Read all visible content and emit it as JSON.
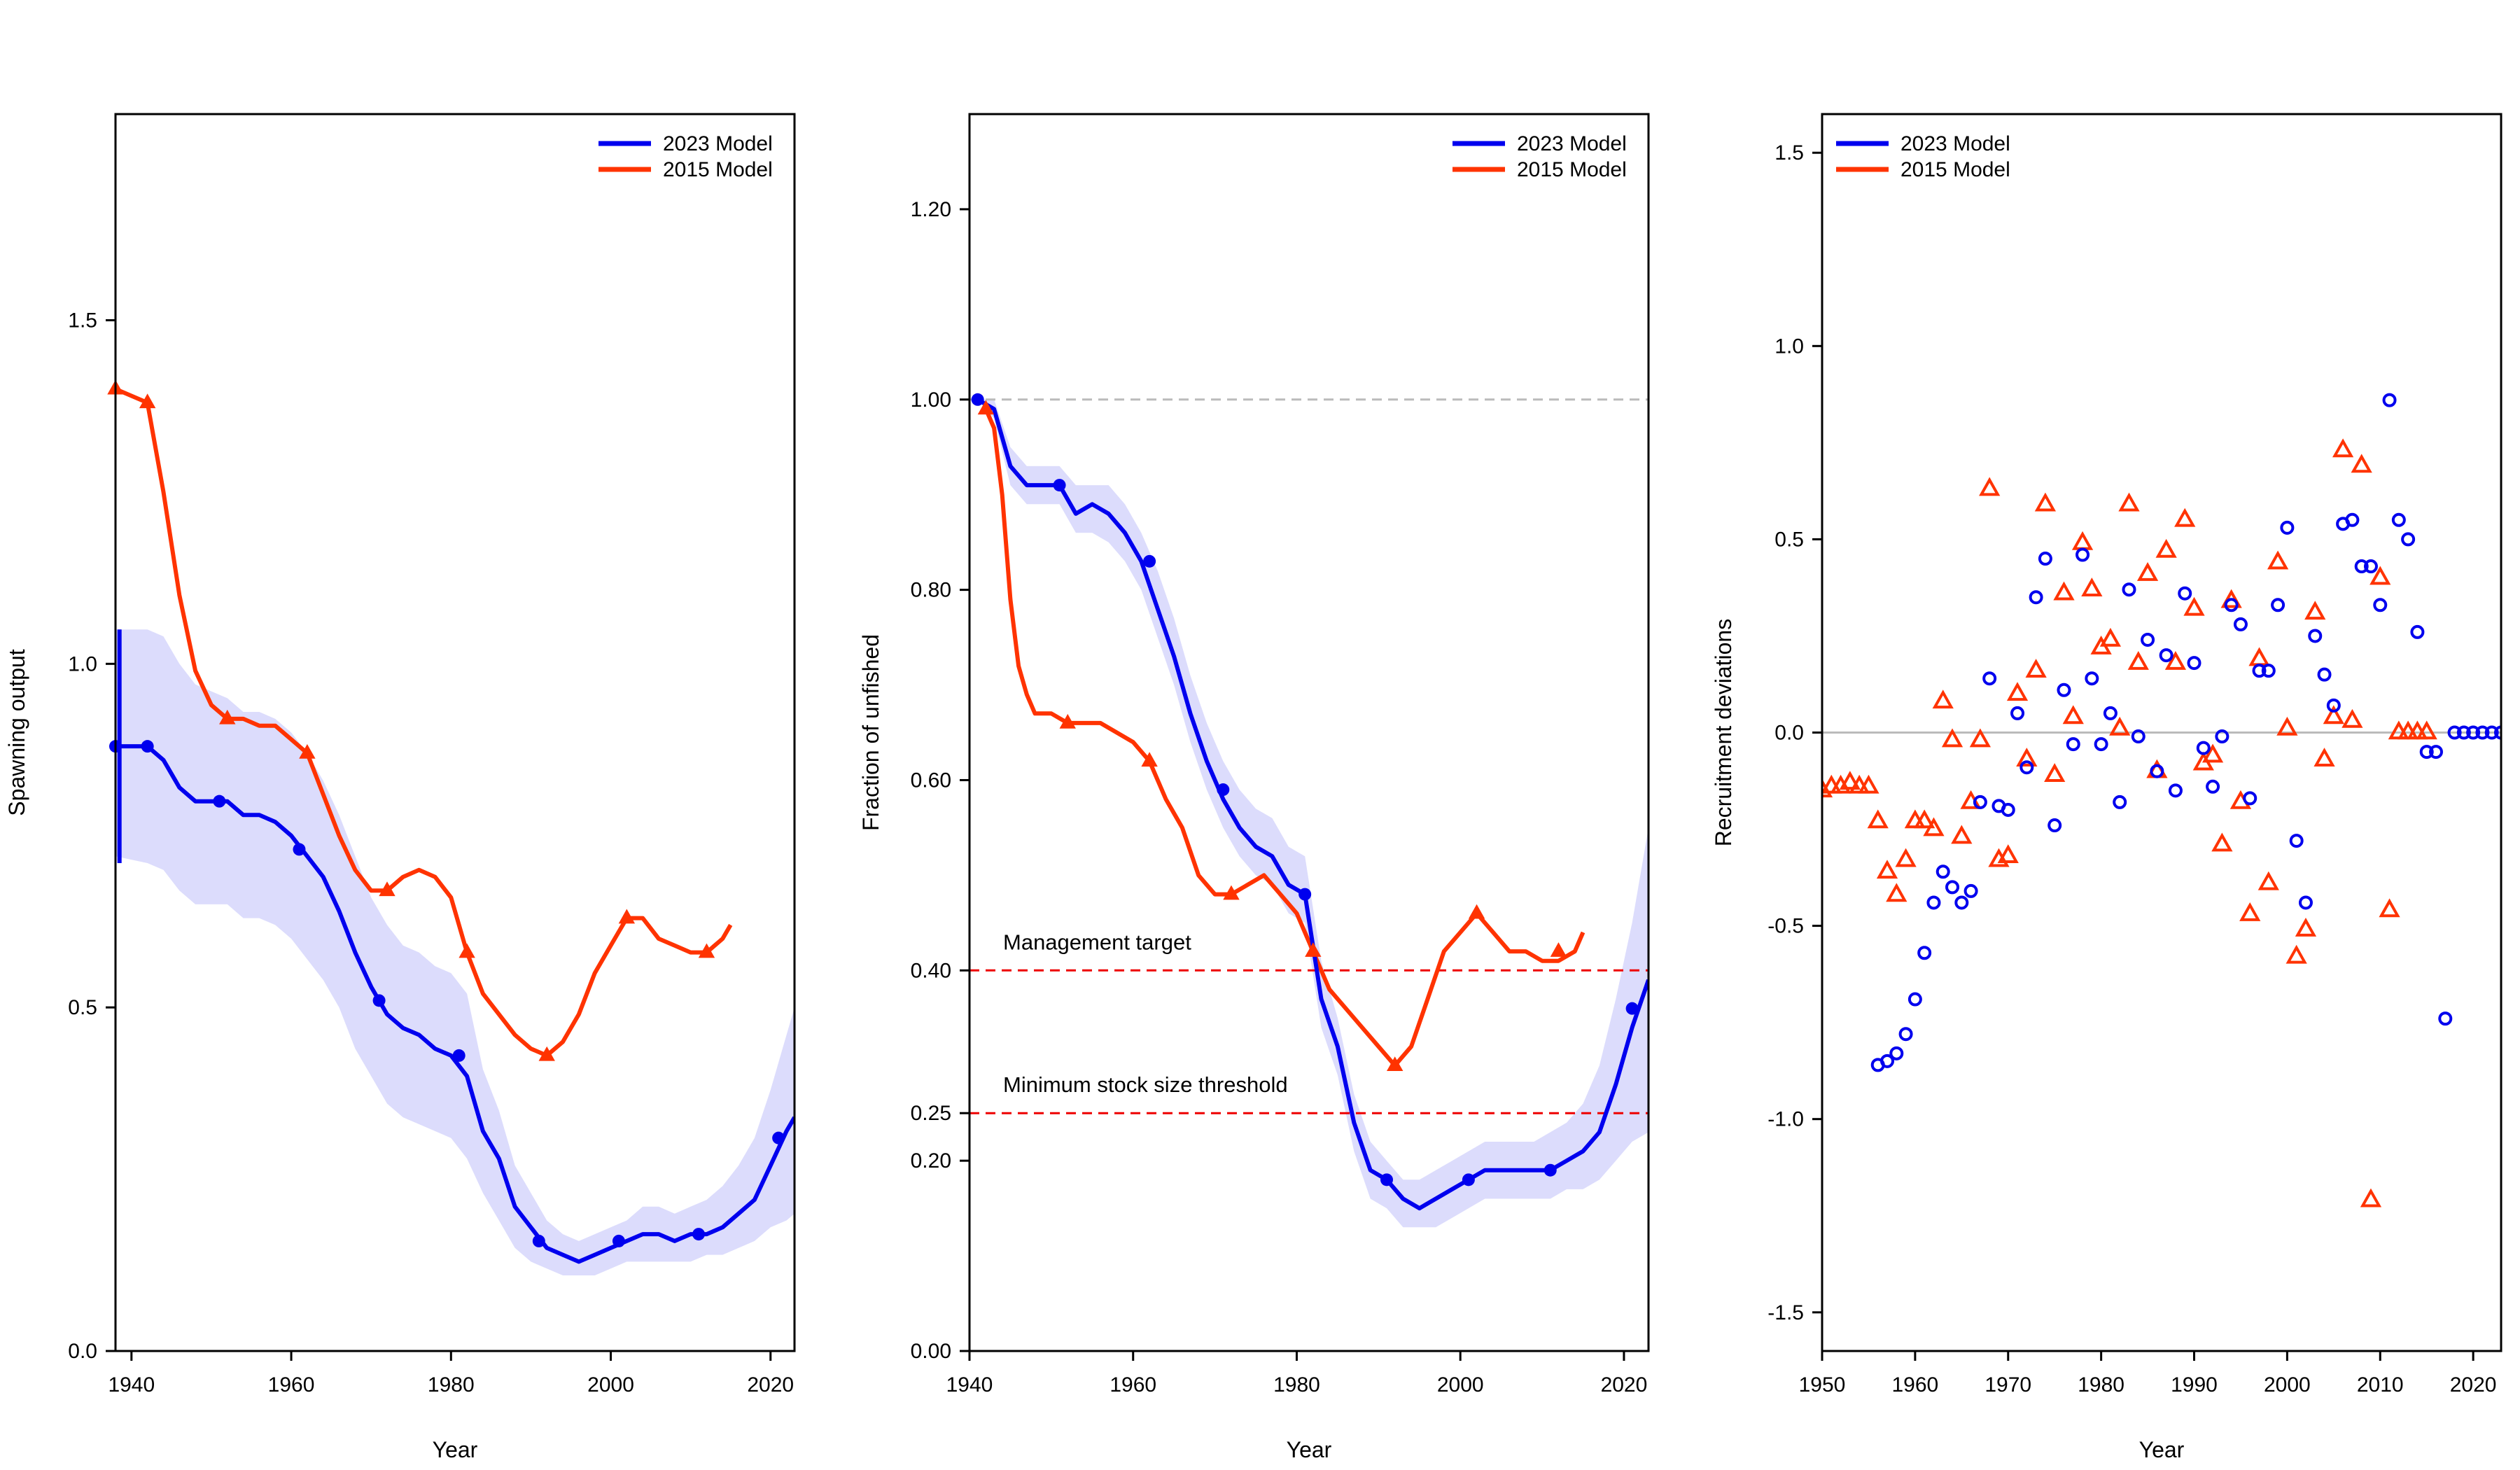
{
  "colors": {
    "model_2023": "#0000ee",
    "model_2015": "#ff3300",
    "band": "#dcdcfc",
    "reference_dashed": "#ee0000",
    "unfished_dashed": "#bbbbbb",
    "zero_line": "#bbbbbb"
  },
  "legend": {
    "items": [
      "2023 Model",
      "2015 Model"
    ]
  },
  "chart_data": [
    {
      "type": "line",
      "panel": "spawning-output",
      "xlabel": "Year",
      "ylabel": "Spawning output",
      "xlim": [
        1938,
        2023
      ],
      "ylim": [
        0,
        1.8
      ],
      "xticks": [
        "1940",
        "1960",
        "1980",
        "2000",
        "2020"
      ],
      "yticks": [
        "0.0",
        "0.5",
        "1.0",
        "1.5"
      ],
      "legend_position": "top-right",
      "initial_interval_2023": {
        "x": 1938.5,
        "low": 0.71,
        "high": 1.05
      },
      "series": [
        {
          "name": "2023 Model",
          "x": [
            1938,
            1942,
            1944,
            1946,
            1948,
            1950,
            1952,
            1954,
            1956,
            1958,
            1960,
            1962,
            1964,
            1966,
            1968,
            1970,
            1972,
            1974,
            1976,
            1978,
            1980,
            1982,
            1984,
            1986,
            1988,
            1990,
            1992,
            1994,
            1996,
            1998,
            2000,
            2002,
            2004,
            2006,
            2008,
            2010,
            2012,
            2014,
            2016,
            2018,
            2020,
            2022,
            2023
          ],
          "y": [
            0.88,
            0.88,
            0.86,
            0.82,
            0.8,
            0.8,
            0.8,
            0.78,
            0.78,
            0.77,
            0.75,
            0.72,
            0.69,
            0.64,
            0.58,
            0.53,
            0.49,
            0.47,
            0.46,
            0.44,
            0.43,
            0.4,
            0.32,
            0.28,
            0.21,
            0.18,
            0.15,
            0.14,
            0.13,
            0.14,
            0.15,
            0.16,
            0.17,
            0.17,
            0.16,
            0.17,
            0.17,
            0.18,
            0.2,
            0.22,
            0.27,
            0.32,
            0.34
          ],
          "lower": [
            0.72,
            0.71,
            0.7,
            0.67,
            0.65,
            0.65,
            0.65,
            0.63,
            0.63,
            0.62,
            0.6,
            0.57,
            0.54,
            0.5,
            0.44,
            0.4,
            0.36,
            0.34,
            0.33,
            0.32,
            0.31,
            0.28,
            0.23,
            0.19,
            0.15,
            0.13,
            0.12,
            0.11,
            0.11,
            0.11,
            0.12,
            0.13,
            0.13,
            0.13,
            0.13,
            0.13,
            0.14,
            0.14,
            0.15,
            0.16,
            0.18,
            0.19,
            0.2
          ],
          "upper": [
            1.05,
            1.05,
            1.04,
            1.0,
            0.97,
            0.96,
            0.95,
            0.93,
            0.93,
            0.92,
            0.9,
            0.87,
            0.83,
            0.78,
            0.72,
            0.66,
            0.62,
            0.59,
            0.58,
            0.56,
            0.55,
            0.52,
            0.41,
            0.35,
            0.27,
            0.23,
            0.19,
            0.17,
            0.16,
            0.17,
            0.18,
            0.19,
            0.21,
            0.21,
            0.2,
            0.21,
            0.22,
            0.24,
            0.27,
            0.31,
            0.38,
            0.46,
            0.5
          ],
          "markers": {
            "x": [
              1938,
              1942,
              1951,
              1961,
              1971,
              1981,
              1991,
              2001,
              2011,
              2021
            ],
            "y": [
              0.88,
              0.88,
              0.8,
              0.73,
              0.51,
              0.43,
              0.16,
              0.16,
              0.17,
              0.31
            ]
          }
        },
        {
          "name": "2015 Model",
          "x": [
            1938,
            1940,
            1942,
            1944,
            1946,
            1948,
            1950,
            1952,
            1954,
            1956,
            1958,
            1960,
            1962,
            1964,
            1966,
            1968,
            1970,
            1972,
            1974,
            1976,
            1978,
            1980,
            1982,
            1984,
            1986,
            1988,
            1990,
            1992,
            1994,
            1996,
            1998,
            2000,
            2002,
            2004,
            2006,
            2008,
            2010,
            2012,
            2014,
            2015
          ],
          "y": [
            1.4,
            1.39,
            1.38,
            1.25,
            1.1,
            0.99,
            0.94,
            0.92,
            0.92,
            0.91,
            0.91,
            0.89,
            0.87,
            0.81,
            0.75,
            0.7,
            0.67,
            0.67,
            0.69,
            0.7,
            0.69,
            0.66,
            0.58,
            0.52,
            0.49,
            0.46,
            0.44,
            0.43,
            0.45,
            0.49,
            0.55,
            0.59,
            0.63,
            0.63,
            0.6,
            0.59,
            0.58,
            0.58,
            0.6,
            0.62
          ],
          "markers": {
            "x": [
              1938,
              1942,
              1952,
              1962,
              1972,
              1982,
              1992,
              2002,
              2012
            ],
            "y": [
              1.4,
              1.38,
              0.92,
              0.87,
              0.67,
              0.58,
              0.43,
              0.63,
              0.58
            ]
          }
        }
      ]
    },
    {
      "type": "line",
      "panel": "fraction-unfished",
      "xlabel": "Year",
      "ylabel": "Fraction of unfished",
      "xlim": [
        1940,
        2023
      ],
      "ylim": [
        0,
        1.3
      ],
      "xticks": [
        "1940",
        "1960",
        "1980",
        "2000",
        "2020"
      ],
      "yticks": [
        "0.00",
        "0.20",
        "0.25",
        "0.40",
        "0.60",
        "0.80",
        "1.00",
        "1.20"
      ],
      "legend_position": "top-right",
      "reference_lines": [
        {
          "y": 1.0,
          "style": "dashed-grey",
          "label": ""
        },
        {
          "y": 0.4,
          "style": "dashed-red",
          "label": "Management target"
        },
        {
          "y": 0.25,
          "style": "dashed-red",
          "label": "Minimum stock size threshold"
        }
      ],
      "series": [
        {
          "name": "2023 Model",
          "x": [
            1941,
            1943,
            1945,
            1947,
            1949,
            1951,
            1953,
            1955,
            1957,
            1959,
            1961,
            1963,
            1965,
            1967,
            1969,
            1971,
            1973,
            1975,
            1977,
            1979,
            1981,
            1983,
            1985,
            1987,
            1989,
            1991,
            1993,
            1995,
            1997,
            1999,
            2001,
            2003,
            2005,
            2007,
            2009,
            2011,
            2013,
            2015,
            2017,
            2019,
            2021,
            2023
          ],
          "y": [
            1.0,
            0.99,
            0.93,
            0.91,
            0.91,
            0.91,
            0.88,
            0.89,
            0.88,
            0.86,
            0.83,
            0.78,
            0.73,
            0.67,
            0.62,
            0.58,
            0.55,
            0.53,
            0.52,
            0.49,
            0.48,
            0.37,
            0.32,
            0.24,
            0.19,
            0.18,
            0.16,
            0.15,
            0.16,
            0.17,
            0.18,
            0.19,
            0.19,
            0.19,
            0.19,
            0.19,
            0.2,
            0.21,
            0.23,
            0.28,
            0.34,
            0.39
          ],
          "lower": [
            1.0,
            0.98,
            0.91,
            0.89,
            0.89,
            0.89,
            0.86,
            0.86,
            0.85,
            0.83,
            0.8,
            0.75,
            0.7,
            0.64,
            0.59,
            0.55,
            0.52,
            0.5,
            0.49,
            0.46,
            0.45,
            0.34,
            0.29,
            0.21,
            0.16,
            0.15,
            0.13,
            0.13,
            0.13,
            0.14,
            0.15,
            0.16,
            0.16,
            0.16,
            0.16,
            0.16,
            0.17,
            0.17,
            0.18,
            0.2,
            0.22,
            0.23
          ],
          "upper": [
            1.0,
            1.0,
            0.95,
            0.93,
            0.93,
            0.93,
            0.91,
            0.91,
            0.91,
            0.89,
            0.86,
            0.82,
            0.77,
            0.71,
            0.66,
            0.62,
            0.59,
            0.57,
            0.56,
            0.53,
            0.52,
            0.41,
            0.35,
            0.27,
            0.22,
            0.2,
            0.18,
            0.18,
            0.19,
            0.2,
            0.21,
            0.22,
            0.22,
            0.22,
            0.22,
            0.23,
            0.24,
            0.26,
            0.3,
            0.37,
            0.45,
            0.55
          ],
          "markers": {
            "x": [
              1941,
              1951,
              1962,
              1971,
              1981,
              1991,
              2001,
              2011,
              2021
            ],
            "y": [
              1.0,
              0.91,
              0.83,
              0.59,
              0.48,
              0.18,
              0.18,
              0.19,
              0.36
            ]
          }
        },
        {
          "name": "2015 Model",
          "x": [
            1942,
            1943,
            1944,
            1945,
            1946,
            1947,
            1948,
            1950,
            1952,
            1954,
            1956,
            1958,
            1960,
            1962,
            1964,
            1966,
            1968,
            1970,
            1972,
            1974,
            1976,
            1978,
            1980,
            1982,
            1984,
            1986,
            1988,
            1990,
            1992,
            1994,
            1996,
            1998,
            2000,
            2002,
            2004,
            2006,
            2008,
            2010,
            2012,
            2014,
            2015
          ],
          "y": [
            0.99,
            0.97,
            0.9,
            0.79,
            0.72,
            0.69,
            0.67,
            0.67,
            0.66,
            0.66,
            0.66,
            0.65,
            0.64,
            0.62,
            0.58,
            0.55,
            0.5,
            0.48,
            0.48,
            0.49,
            0.5,
            0.48,
            0.46,
            0.42,
            0.38,
            0.36,
            0.34,
            0.32,
            0.3,
            0.32,
            0.37,
            0.42,
            0.44,
            0.46,
            0.44,
            0.42,
            0.42,
            0.41,
            0.41,
            0.42,
            0.44
          ],
          "markers": {
            "x": [
              1942,
              1952,
              1962,
              1972,
              1982,
              1992,
              2002,
              2012
            ],
            "y": [
              0.99,
              0.66,
              0.62,
              0.48,
              0.42,
              0.3,
              0.46,
              0.42
            ]
          }
        }
      ]
    },
    {
      "type": "scatter",
      "panel": "recruitment-deviations",
      "xlabel": "Year",
      "ylabel": "Recruitment deviations",
      "xlim": [
        1950,
        2023
      ],
      "ylim": [
        -1.6,
        1.6
      ],
      "xticks": [
        "1950",
        "1960",
        "1970",
        "1980",
        "1990",
        "2000",
        "2010",
        "2020"
      ],
      "yticks": [
        "-1.5",
        "-1.0",
        "-0.5",
        "0.0",
        "0.5",
        "1.0",
        "1.5"
      ],
      "legend_position": "top-left",
      "reference_lines": [
        {
          "y": 0,
          "style": "solid-grey"
        }
      ],
      "series": [
        {
          "name": "2023 Model",
          "x": [
            1956,
            1957,
            1958,
            1959,
            1960,
            1961,
            1962,
            1963,
            1964,
            1965,
            1966,
            1967,
            1968,
            1969,
            1970,
            1971,
            1972,
            1973,
            1974,
            1975,
            1976,
            1977,
            1978,
            1979,
            1980,
            1981,
            1982,
            1983,
            1984,
            1985,
            1986,
            1987,
            1988,
            1989,
            1990,
            1991,
            1992,
            1993,
            1994,
            1995,
            1996,
            1997,
            1998,
            1999,
            2000,
            2001,
            2002,
            2003,
            2004,
            2005,
            2006,
            2007,
            2008,
            2009,
            2010,
            2011,
            2012,
            2013,
            2014,
            2015,
            2016,
            2017,
            2018,
            2019,
            2020,
            2021,
            2022,
            2023
          ],
          "y": [
            -0.86,
            -0.85,
            -0.83,
            -0.78,
            -0.69,
            -0.57,
            -0.44,
            -0.36,
            -0.4,
            -0.44,
            -0.41,
            -0.18,
            0.14,
            -0.19,
            -0.2,
            0.05,
            -0.09,
            0.35,
            0.45,
            -0.24,
            0.11,
            -0.03,
            0.46,
            0.14,
            -0.03,
            0.05,
            -0.18,
            0.37,
            -0.01,
            0.24,
            -0.1,
            0.2,
            -0.15,
            0.36,
            0.18,
            -0.04,
            -0.14,
            -0.01,
            0.33,
            0.28,
            -0.17,
            0.16,
            0.16,
            0.33,
            0.53,
            -0.28,
            -0.44,
            0.25,
            0.15,
            0.07,
            0.54,
            0.55,
            0.43,
            0.43,
            0.33,
            0.86,
            0.55,
            0.5,
            0.26,
            -0.05,
            -0.05,
            -0.74,
            0.0,
            0.0,
            0.0,
            0.0,
            0.0,
            0.0
          ]
        },
        {
          "name": "2015 Model",
          "x": [
            1950,
            1951,
            1952,
            1953,
            1954,
            1955,
            1956,
            1957,
            1958,
            1959,
            1960,
            1961,
            1962,
            1963,
            1964,
            1965,
            1966,
            1967,
            1968,
            1969,
            1970,
            1971,
            1972,
            1973,
            1974,
            1975,
            1976,
            1977,
            1978,
            1979,
            1980,
            1981,
            1982,
            1983,
            1984,
            1985,
            1986,
            1987,
            1988,
            1989,
            1990,
            1991,
            1992,
            1993,
            1994,
            1995,
            1996,
            1997,
            1998,
            1999,
            2000,
            2001,
            2002,
            2003,
            2004,
            2005,
            2006,
            2007,
            2008,
            2009,
            2010,
            2011,
            2012,
            2013,
            2014,
            2015
          ],
          "y": [
            -0.15,
            -0.14,
            -0.14,
            -0.13,
            -0.14,
            -0.14,
            -0.23,
            -0.36,
            -0.42,
            -0.33,
            -0.23,
            -0.23,
            -0.25,
            0.08,
            -0.02,
            -0.27,
            -0.18,
            -0.02,
            0.63,
            -0.33,
            -0.32,
            0.1,
            -0.07,
            0.16,
            0.59,
            -0.11,
            0.36,
            0.04,
            0.49,
            0.37,
            0.22,
            0.24,
            0.01,
            0.59,
            0.18,
            0.41,
            -0.1,
            0.47,
            0.18,
            0.55,
            0.32,
            -0.08,
            -0.06,
            -0.29,
            0.34,
            -0.18,
            -0.47,
            0.19,
            -0.39,
            0.44,
            0.01,
            -0.58,
            -0.51,
            0.31,
            -0.07,
            0.04,
            0.73,
            0.03,
            0.69,
            -1.21,
            0.4,
            -0.46,
            0.0,
            0.0,
            0.0,
            0.0
          ]
        }
      ]
    }
  ]
}
